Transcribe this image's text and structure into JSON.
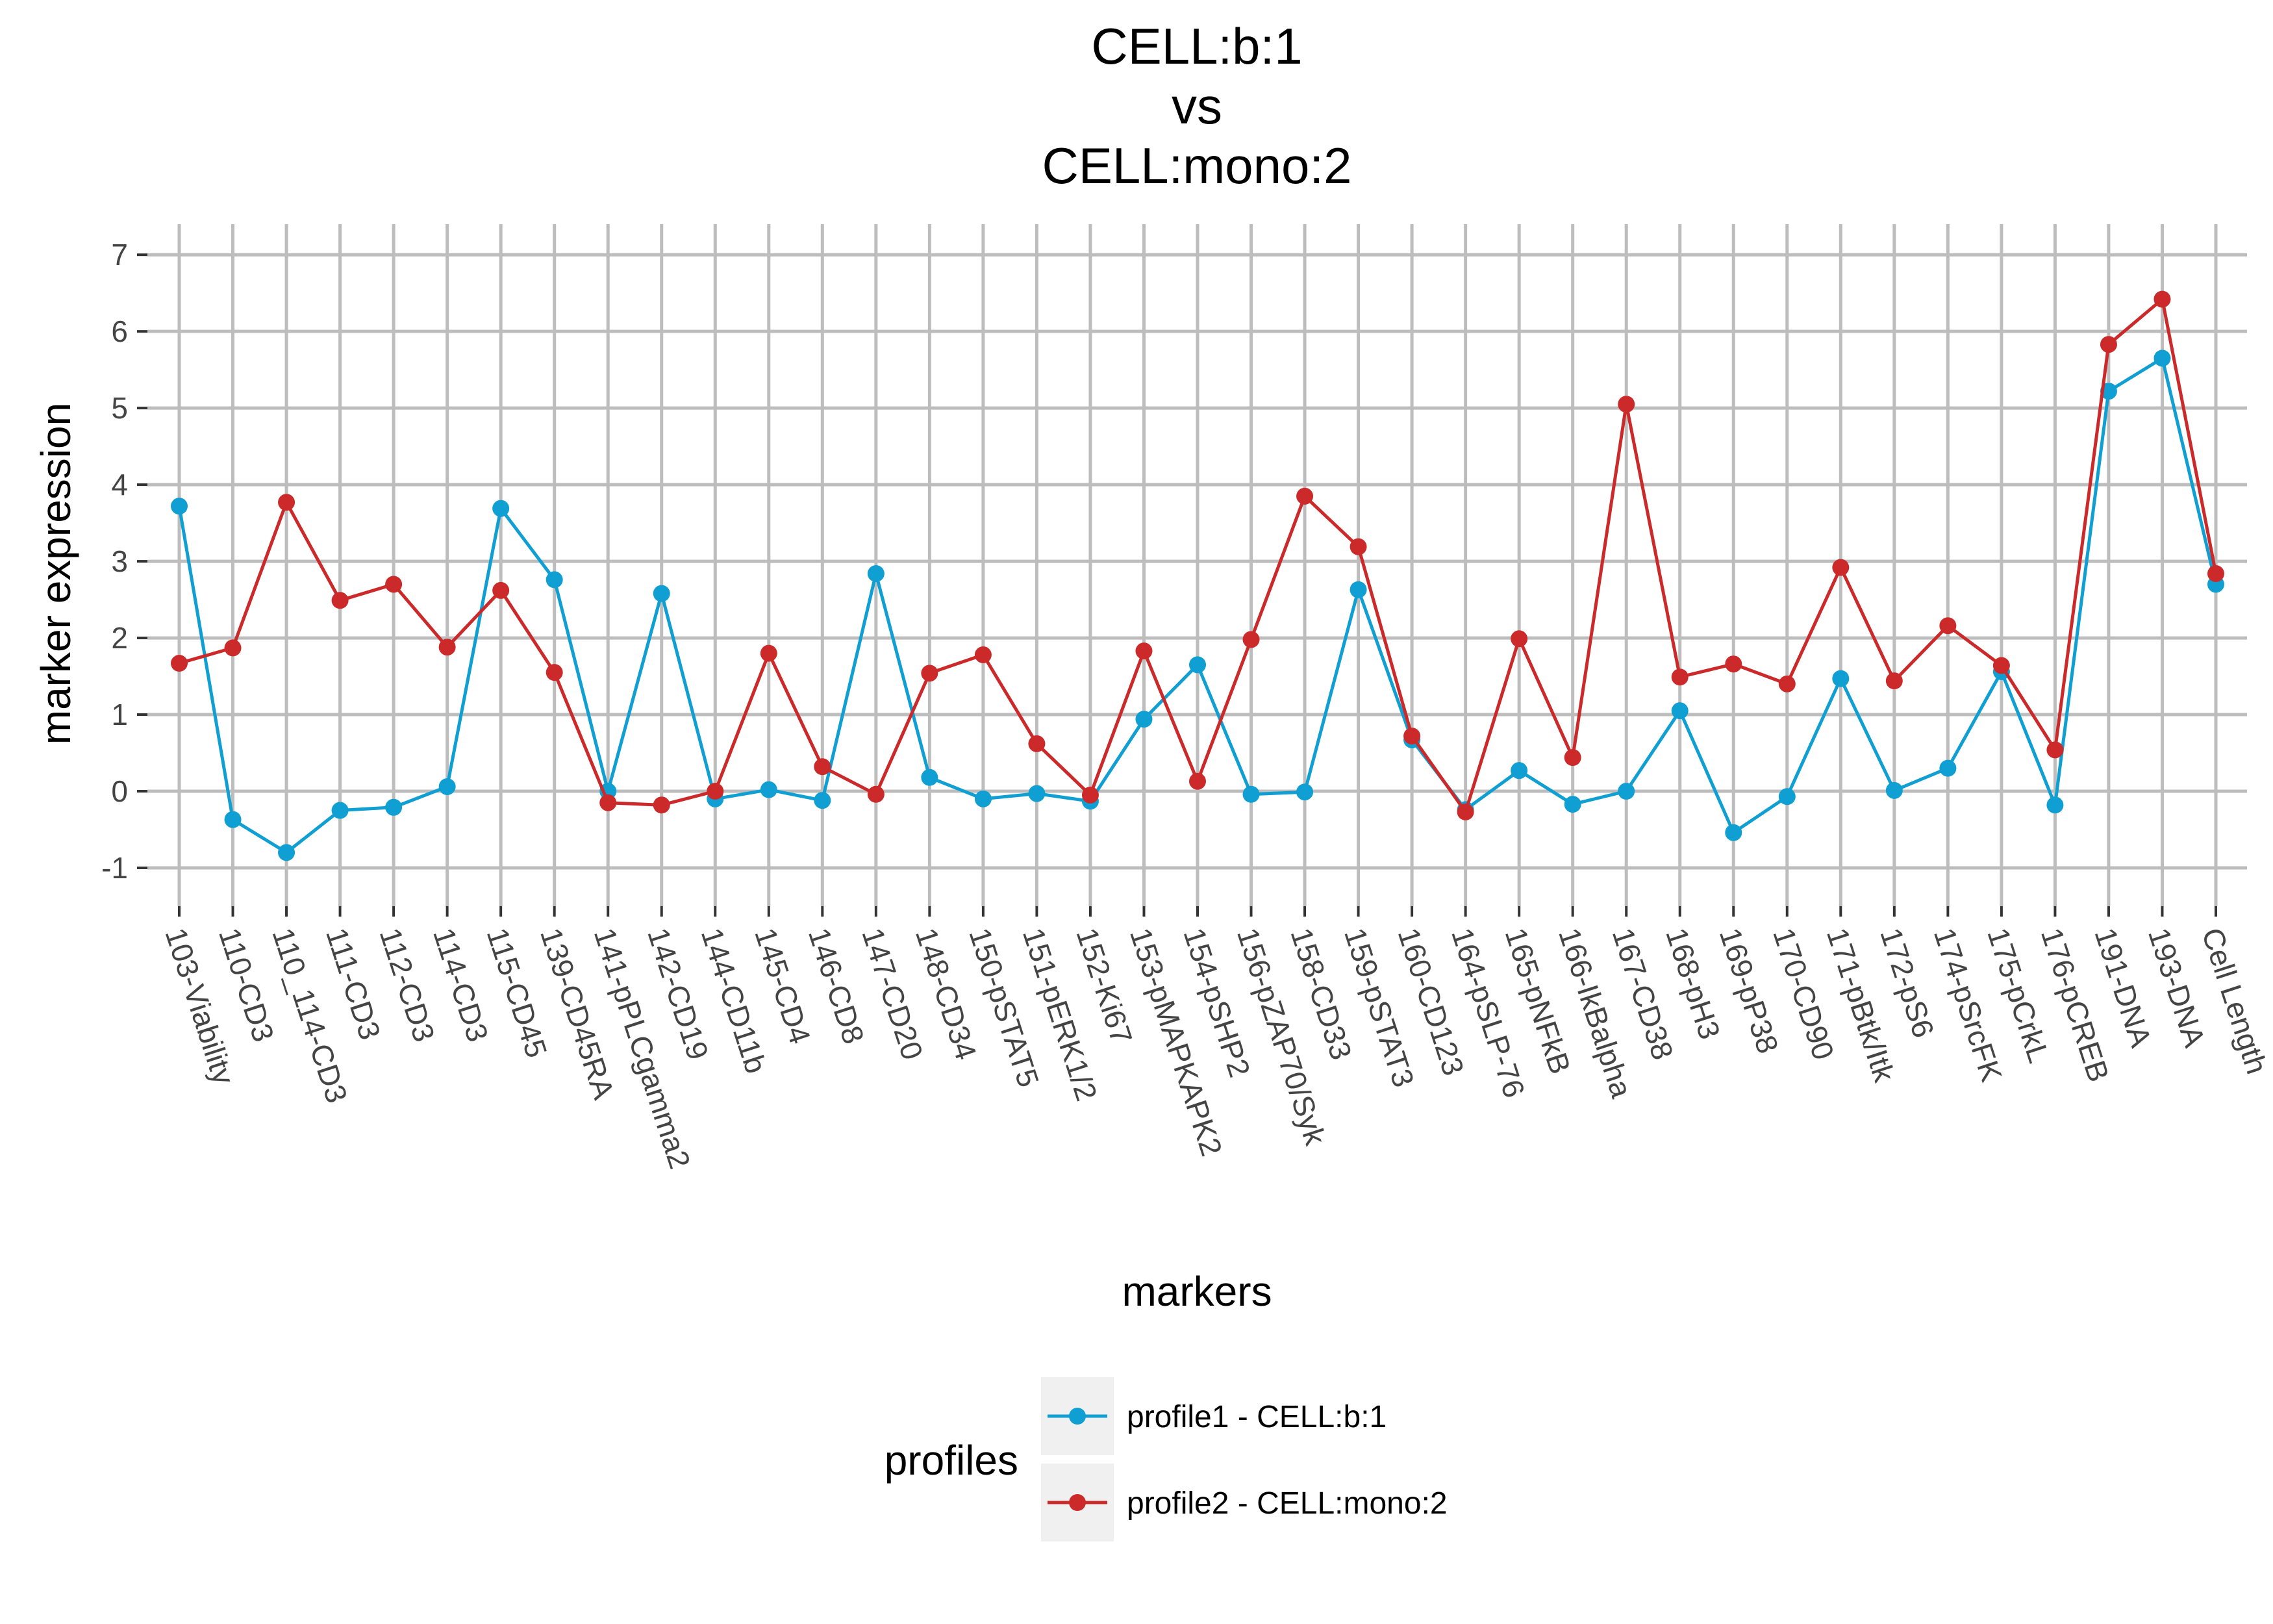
{
  "chart_data": {
    "type": "line",
    "title_lines": [
      "CELL:b:1",
      "vs",
      "CELL:mono:2"
    ],
    "xlabel": "markers",
    "ylabel": "marker expression",
    "ylim": [
      -1.5,
      7.4
    ],
    "yticks": [
      -1,
      0,
      1,
      2,
      3,
      4,
      5,
      6,
      7
    ],
    "grid": true,
    "legend": {
      "title": "profiles",
      "position": "bottom"
    },
    "categories": [
      "103-Viability",
      "110-CD3",
      "110_114-CD3",
      "111-CD3",
      "112-CD3",
      "114-CD3",
      "115-CD45",
      "139-CD45RA",
      "141-pPLCgamma2",
      "142-CD19",
      "144-CD11b",
      "145-CD4",
      "146-CD8",
      "147-CD20",
      "148-CD34",
      "150-pSTAT5",
      "151-pERK1/2",
      "152-Ki67",
      "153-pMAPKAPK2",
      "154-pSHP2",
      "156-pZAP70/Syk",
      "158-CD33",
      "159-pSTAT3",
      "160-CD123",
      "164-pSLP-76",
      "165-pNFkB",
      "166-IkBalpha",
      "167-CD38",
      "168-pH3",
      "169-pP38",
      "170-CD90",
      "171-pBtk/Itk",
      "172-pS6",
      "174-pSrcFK",
      "175-pCrkL",
      "176-pCREB",
      "191-DNA",
      "193-DNA",
      "Cell Length"
    ],
    "series": [
      {
        "name": "profile1 - CELL:b:1",
        "color": "#0f9fd2",
        "values": [
          3.72,
          -0.37,
          -0.8,
          -0.25,
          -0.21,
          0.06,
          3.69,
          2.76,
          0.0,
          2.58,
          -0.1,
          0.02,
          -0.12,
          2.84,
          0.18,
          -0.1,
          -0.03,
          -0.13,
          0.94,
          1.65,
          -0.04,
          -0.01,
          2.63,
          0.67,
          -0.24,
          0.27,
          -0.17,
          0.0,
          1.05,
          -0.54,
          -0.07,
          1.47,
          0.01,
          0.3,
          1.56,
          -0.18,
          5.22,
          5.65,
          2.7
        ]
      },
      {
        "name": "profile2 - CELL:mono:2",
        "color": "#cc2a2a",
        "values": [
          1.67,
          1.87,
          3.77,
          2.49,
          2.7,
          1.88,
          2.62,
          1.55,
          -0.15,
          -0.18,
          0.0,
          1.8,
          0.32,
          -0.04,
          1.54,
          1.78,
          0.62,
          -0.05,
          1.83,
          0.13,
          1.98,
          3.85,
          3.19,
          0.72,
          -0.27,
          1.99,
          0.44,
          5.05,
          1.49,
          1.66,
          1.4,
          2.92,
          1.44,
          2.16,
          1.64,
          0.54,
          5.83,
          6.42,
          2.84
        ]
      }
    ]
  }
}
